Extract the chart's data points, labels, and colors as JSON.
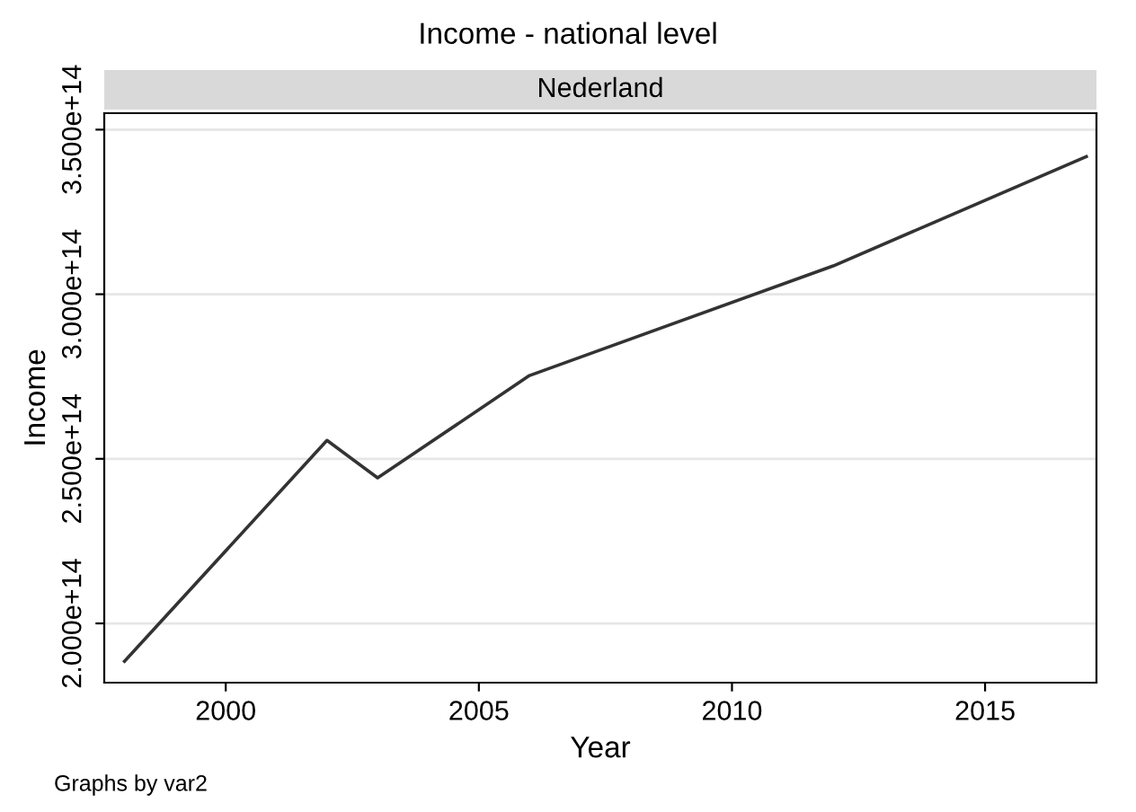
{
  "chart_data": {
    "type": "line",
    "title": "Income - national level",
    "subtitle": "Nederland",
    "xlabel": "Year",
    "ylabel": "Income",
    "annotations": [
      "Graphs by var2"
    ],
    "x": [
      1998,
      2002,
      2003,
      2006,
      2012,
      2017
    ],
    "series": [
      {
        "color": "#333333",
        "values": [
          188500000000000.0,
          255600000000000.0,
          244200000000000.0,
          275300000000000.0,
          308600000000000.0,
          341800000000000.0
        ]
      }
    ],
    "xlim": [
      1997.6,
      2017.2
    ],
    "ylim": [
      182000000000000.0,
      355000000000000.0
    ],
    "xticks": [
      2000,
      2005,
      2010,
      2015
    ],
    "yticks": [
      {
        "value": 200000000000000.0,
        "label": "2.000e+14"
      },
      {
        "value": 250000000000000.0,
        "label": "2.500e+14"
      },
      {
        "value": 300000000000000.0,
        "label": "3.000e+14"
      },
      {
        "value": 350000000000000.0,
        "label": "3.500e+14"
      }
    ],
    "grid": "y",
    "legend": false
  }
}
